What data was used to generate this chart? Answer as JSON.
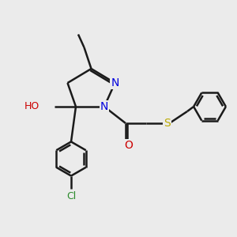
{
  "bg_color": "#ebebeb",
  "bond_color": "#1a1a1a",
  "bond_width": 1.8,
  "atom_colors": {
    "N": "#0000dd",
    "O": "#cc0000",
    "S": "#bbaa00",
    "Cl": "#2a8a2a",
    "H": "#888888",
    "C": "#1a1a1a"
  },
  "font_size": 9,
  "fig_size": [
    3.0,
    3.0
  ],
  "dpi": 100
}
